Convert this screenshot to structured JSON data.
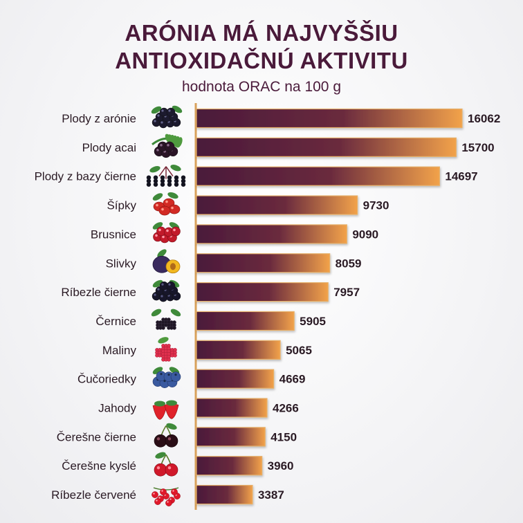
{
  "header": {
    "title_line1": "ARÓNIA MÁ NAJVYŠŠIU",
    "title_line2": "ANTIOXIDAČNÚ AKTIVITU",
    "subtitle": "hodnota ORAC na 100 g"
  },
  "colors": {
    "bar_start": "#4a1a3a",
    "bar_end": "#f2a24a",
    "axis": "#d9a15a",
    "text": "#2a1a24",
    "title": "#4a1a3a"
  },
  "chart_data": {
    "type": "bar",
    "orientation": "horizontal",
    "title": "ARÓNIA MÁ NAJVYŠŠIU ANTIOXIDAČNÚ AKTIVITU",
    "subtitle": "hodnota ORAC na 100 g",
    "xlabel": "",
    "ylabel": "",
    "xlim": [
      0,
      16062
    ],
    "grid": false,
    "legend": "none",
    "categories": [
      "Plody z arónie",
      "Plody acai",
      "Plody z bazy čierne",
      "Šípky",
      "Brusnice",
      "Slivky",
      "Ríbezle čierne",
      "Černice",
      "Maliny",
      "Čučoriedky",
      "Jahody",
      "Čerešne čierne",
      "Čerešne kyslé",
      "Ríbezle červené"
    ],
    "values": [
      16062,
      15700,
      14697,
      9730,
      9090,
      8059,
      7957,
      5905,
      5065,
      4669,
      4266,
      4150,
      3960,
      3387
    ],
    "icons": [
      "aronia-berries-icon",
      "acai-berries-icon",
      "elderberry-icon",
      "rosehip-icon",
      "cranberry-icon",
      "plum-icon",
      "blackcurrant-icon",
      "blackberry-icon",
      "raspberry-icon",
      "blueberry-icon",
      "strawberry-icon",
      "black-cherry-icon",
      "sour-cherry-icon",
      "redcurrant-icon"
    ]
  }
}
